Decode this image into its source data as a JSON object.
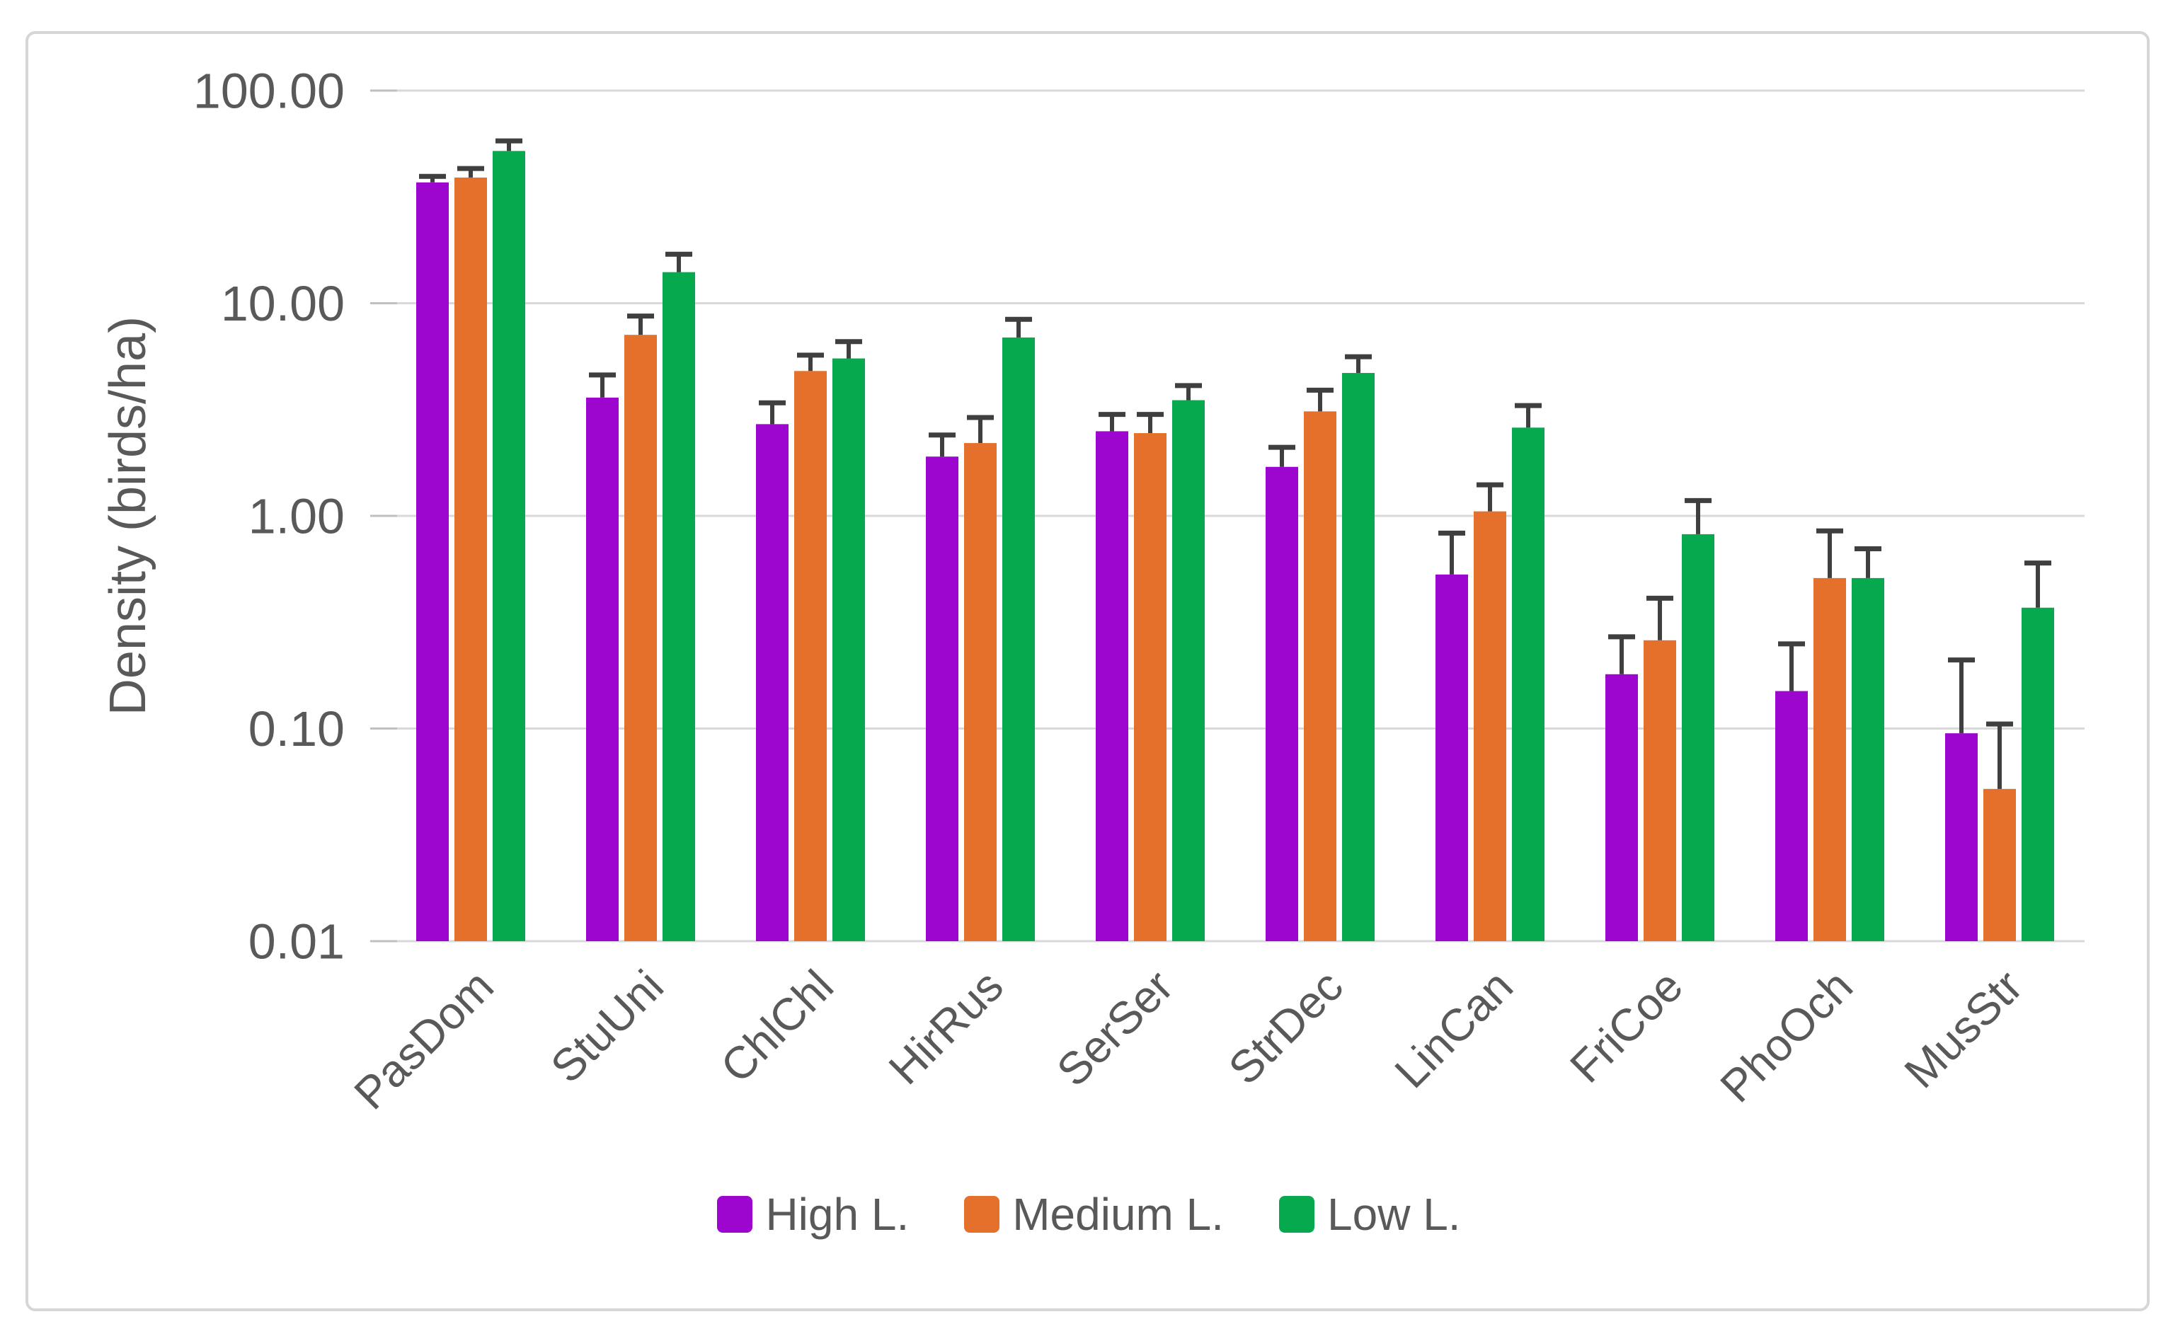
{
  "chart_data": {
    "type": "bar",
    "title": "",
    "xlabel": "",
    "ylabel": "Density (birds/ha)",
    "y_scale": "log",
    "ylim": [
      0.01,
      100
    ],
    "grid": true,
    "legend_position": "bottom",
    "y_ticks": [
      {
        "label": "100.00",
        "value": 100
      },
      {
        "label": "10.00",
        "value": 10
      },
      {
        "label": "1.00",
        "value": 1
      },
      {
        "label": "0.10",
        "value": 0.1
      },
      {
        "label": "0.01",
        "value": 0.01
      }
    ],
    "categories": [
      "PasDom",
      "StuUni",
      "ChlChl",
      "HirRus",
      "SerSer",
      "StrDec",
      "LinCan",
      "FriCoe",
      "PhoOch",
      "MusStr"
    ],
    "series": [
      {
        "name": "High L.",
        "color": "#9C06CF",
        "values": [
          37,
          3.6,
          2.7,
          1.9,
          2.5,
          1.7,
          0.53,
          0.18,
          0.15,
          0.095
        ],
        "error_upper": [
          39.5,
          4.6,
          3.4,
          2.4,
          3.0,
          2.1,
          0.83,
          0.27,
          0.25,
          0.21
        ]
      },
      {
        "name": "Medium L.",
        "color": "#E4702B",
        "values": [
          39,
          7.1,
          4.8,
          2.2,
          2.45,
          3.1,
          1.05,
          0.26,
          0.51,
          0.052
        ],
        "error_upper": [
          43,
          8.7,
          5.7,
          2.9,
          3.0,
          3.9,
          1.4,
          0.41,
          0.85,
          0.105
        ]
      },
      {
        "name": "Low L.",
        "color": "#07A94F",
        "values": [
          52,
          14,
          5.5,
          6.9,
          3.5,
          4.7,
          2.6,
          0.82,
          0.51,
          0.37
        ],
        "error_upper": [
          58,
          17,
          6.6,
          8.4,
          4.1,
          5.6,
          3.3,
          1.18,
          0.7,
          0.6
        ]
      }
    ],
    "style": {
      "text_color": "#595959",
      "grid_color": "#D9D9D9",
      "tick_color": "#BFBFBF",
      "error_color": "#3F3F3F",
      "frame_color": "#D6D6D6",
      "background": "#FFFFFF"
    }
  }
}
